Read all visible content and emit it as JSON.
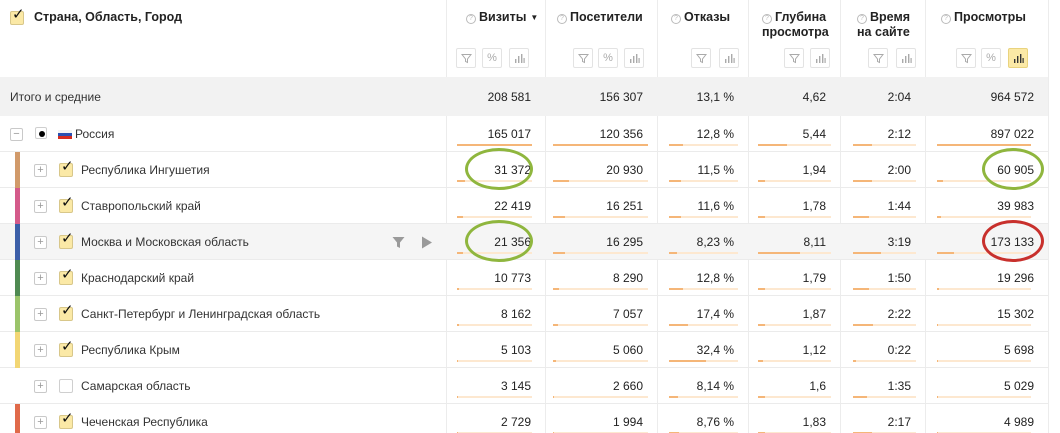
{
  "header": {
    "dimension_title": "Страна, Область, Город",
    "dimension_checked": true,
    "metrics": [
      {
        "label_line1": "Визиты",
        "label_line2": "",
        "sorted": true,
        "sort_glyph": "▼",
        "tools": [
          "filter",
          "percent",
          "chart"
        ]
      },
      {
        "label_line1": "Посетители",
        "label_line2": "",
        "sorted": false,
        "tools": [
          "filter",
          "percent",
          "chart"
        ]
      },
      {
        "label_line1": "Отказы",
        "label_line2": "",
        "sorted": false,
        "tools": [
          "filter",
          "chart"
        ]
      },
      {
        "label_line1": "Глубина",
        "label_line2": "просмотра",
        "sorted": false,
        "tools": [
          "filter",
          "chart"
        ]
      },
      {
        "label_line1": "Время",
        "label_line2": "на сайте",
        "sorted": false,
        "tools": [
          "filter",
          "chart"
        ]
      },
      {
        "label_line1": "Просмотры",
        "label_line2": "",
        "sorted": false,
        "tools": [
          "filter",
          "percent",
          "chart"
        ],
        "active_tool": "chart"
      }
    ],
    "help_glyph": "?"
  },
  "totals": {
    "label": "Итого и средние",
    "values": [
      "208 581",
      "156 307",
      "13,1 %",
      "4,62",
      "2:04",
      "964 572"
    ]
  },
  "rows": [
    {
      "label": "Россия",
      "level": 0,
      "expander": "−",
      "selector": "dot",
      "flag": "ru",
      "color": "",
      "values": [
        "165 017",
        "120 356",
        "12,8 %",
        "5,44",
        "2:12",
        "897 022"
      ],
      "bars": [
        1.0,
        1.0,
        0.2,
        0.4,
        0.3,
        1.0
      ]
    },
    {
      "label": "Республика Ингушетия",
      "level": 1,
      "expander": "+",
      "selector": "checked",
      "color": "#d19a6a",
      "values": [
        "31 372",
        "20 930",
        "11,5 %",
        "1,94",
        "2:00",
        "60 905"
      ],
      "bars": [
        0.1,
        0.17,
        0.18,
        0.1,
        0.3,
        0.06
      ],
      "highlight": [
        {
          "col": 0,
          "color": "green"
        },
        {
          "col": 5,
          "color": "green"
        }
      ]
    },
    {
      "label": "Ставропольский край",
      "level": 1,
      "expander": "+",
      "selector": "checked",
      "color": "#d45a8a",
      "values": [
        "22 419",
        "16 251",
        "11,6 %",
        "1,78",
        "1:44",
        "39 983"
      ],
      "bars": [
        0.08,
        0.13,
        0.18,
        0.1,
        0.25,
        0.04
      ]
    },
    {
      "label": "Москва и Московская область",
      "level": 1,
      "expander": "+",
      "selector": "checked",
      "color": "#3c5fa8",
      "hover": true,
      "values": [
        "21 356",
        "16 295",
        "8,23 %",
        "8,11",
        "3:19",
        "173 133"
      ],
      "bars": [
        0.08,
        0.13,
        0.12,
        0.57,
        0.45,
        0.18
      ],
      "highlight": [
        {
          "col": 0,
          "color": "green"
        },
        {
          "col": 5,
          "color": "red"
        }
      ]
    },
    {
      "label": "Краснодарский край",
      "level": 1,
      "expander": "+",
      "selector": "checked",
      "color": "#4f8a52",
      "values": [
        "10 773",
        "8 290",
        "12,8 %",
        "1,79",
        "1:50",
        "19 296"
      ],
      "bars": [
        0.03,
        0.06,
        0.2,
        0.1,
        0.25,
        0.02
      ]
    },
    {
      "label": "Санкт-Петербург и Ленинградская область",
      "level": 1,
      "expander": "+",
      "selector": "checked",
      "color": "#9bc46a",
      "values": [
        "8 162",
        "7 057",
        "17,4 %",
        "1,87",
        "2:22",
        "15 302"
      ],
      "bars": [
        0.02,
        0.05,
        0.28,
        0.1,
        0.32,
        0.01
      ]
    },
    {
      "label": "Республика Крым",
      "level": 1,
      "expander": "+",
      "selector": "checked",
      "color": "#f2d674",
      "values": [
        "5 103",
        "5 060",
        "32,4 %",
        "1,12",
        "0:22",
        "5 698"
      ],
      "bars": [
        0.01,
        0.03,
        0.53,
        0.07,
        0.05,
        0.005
      ]
    },
    {
      "label": "Самарская область",
      "level": 1,
      "expander": "+",
      "selector": "unchecked",
      "color": "",
      "values": [
        "3 145",
        "2 660",
        "8,14 %",
        "1,6",
        "1:35",
        "5 029"
      ],
      "bars": [
        0.01,
        0.01,
        0.13,
        0.1,
        0.22,
        0.005
      ]
    },
    {
      "label": "Чеченская Республика",
      "level": 1,
      "expander": "+",
      "selector": "checked",
      "color": "#e06a4a",
      "values": [
        "2 729",
        "1 994",
        "8,76 %",
        "1,83",
        "2:17",
        "4 989"
      ],
      "bars": [
        0.01,
        0.01,
        0.14,
        0.1,
        0.3,
        0.005
      ]
    }
  ],
  "row_actions": {
    "filter_icon": "filter",
    "play_icon": "play"
  },
  "colors": {
    "accent_yellow": "#fbe9a6",
    "bar_fill": "#f5b678",
    "bar_track": "#fde8d0",
    "highlight_green": "#8fb63e",
    "highlight_red": "#c8302c"
  }
}
